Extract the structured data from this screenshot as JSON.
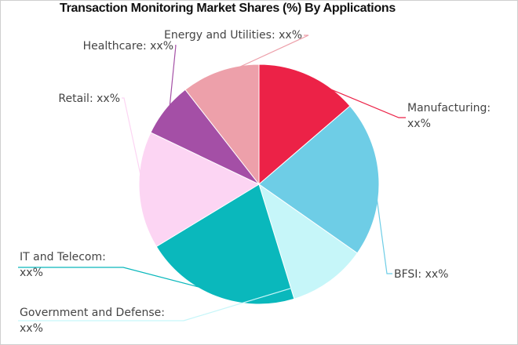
{
  "chart_data": {
    "type": "pie",
    "title": "Transaction Monitoring Market Shares (%) By Applications",
    "categories": [
      "Manufacturing",
      "BFSI",
      "Government and Defense",
      "IT and Telecom",
      "Retail",
      "Healthcare",
      "Energy and Utilities"
    ],
    "values": [
      13,
      20,
      10,
      20,
      15,
      7,
      10
    ],
    "value_labels": [
      "xx%",
      "xx%",
      "xx%",
      "xx%",
      "xx%",
      "xx%",
      "xx%"
    ],
    "colors": [
      "#ec2247",
      "#6ecde6",
      "#c6f6f9",
      "#0ab8bc",
      "#fcd5f3",
      "#a44fa6",
      "#eda0aa"
    ],
    "legend": "none"
  }
}
